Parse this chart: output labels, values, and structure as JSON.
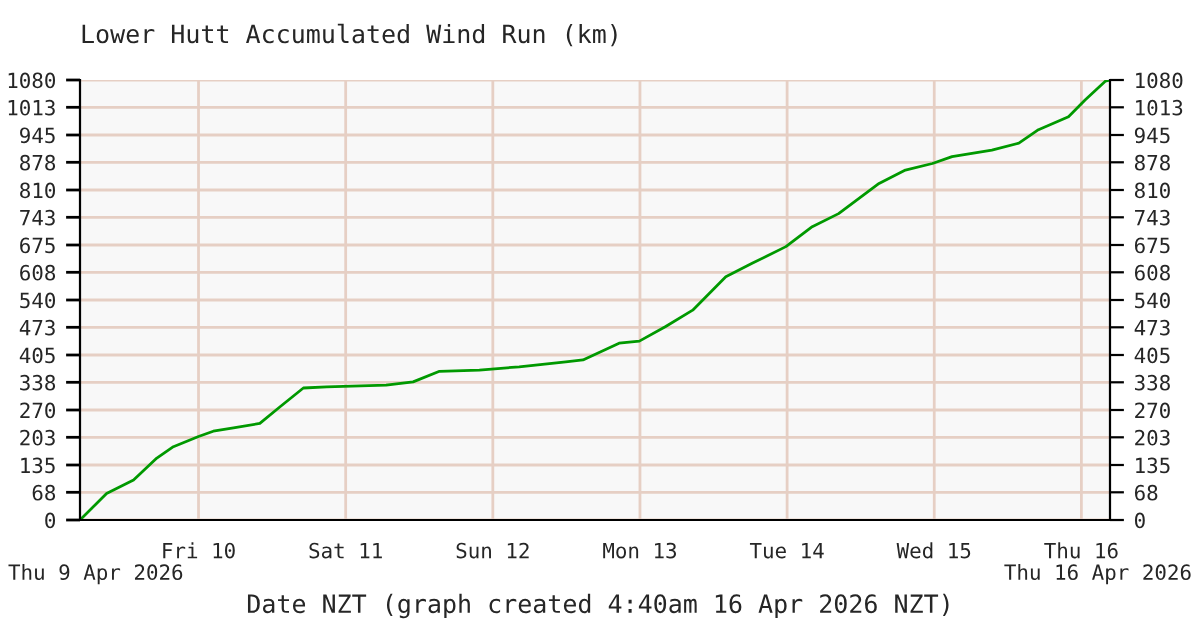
{
  "chart_data": {
    "type": "line",
    "title": "Lower Hutt Accumulated Wind Run (km)",
    "xlabel": "Date NZT (graph created 4:40am 16 Apr 2026 NZT)",
    "annotations": [
      "Thu 9 Apr 2026",
      "Thu 16 Apr 2026"
    ],
    "series": [
      {
        "color": "#009900",
        "x": [
          "2026-04-09T04:40",
          "2026-04-09T09:00",
          "2026-04-09T13:24",
          "2026-04-09T17:12",
          "2026-04-09T19:54",
          "2026-04-10T00:00",
          "2026-04-10T02:24",
          "2026-04-10T05:42",
          "2026-04-10T10:00",
          "2026-04-10T13:18",
          "2026-04-10T17:06",
          "2026-04-10T20:54",
          "2026-04-11T06:36",
          "2026-04-11T11:00",
          "2026-04-11T15:18",
          "2026-04-11T21:48",
          "2026-04-12T04:18",
          "2026-04-12T11:54",
          "2026-04-12T14:42",
          "2026-04-12T20:36",
          "2026-04-12T23:54",
          "2026-04-13T04:12",
          "2026-04-13T08:36",
          "2026-04-13T14:00",
          "2026-04-13T18:18",
          "2026-04-13T23:48",
          "2026-04-14T04:06",
          "2026-04-14T08:24",
          "2026-04-14T15:00",
          "2026-04-14T19:18",
          "2026-04-14T23:42",
          "2026-04-15T02:54",
          "2026-04-15T09:24",
          "2026-04-15T13:48",
          "2026-04-15T17:00",
          "2026-04-15T21:54",
          "2026-04-16T00:36",
          "2026-04-16T03:54",
          "2026-04-16T04:40"
        ],
        "values": [
          0,
          65,
          98,
          152,
          180,
          205,
          218,
          226,
          237,
          278,
          324,
          327,
          331,
          339,
          365,
          368,
          376,
          388,
          393,
          434,
          439,
          475,
          515,
          597,
          630,
          671,
          720,
          752,
          826,
          859,
          875,
          892,
          908,
          925,
          958,
          990,
          1031,
          1077,
          1080
        ]
      }
    ],
    "xlim": [
      "2026-04-09T04:40",
      "2026-04-16T04:40"
    ],
    "xticks": [
      {
        "value": "2026-04-10",
        "label": "Fri 10"
      },
      {
        "value": "2026-04-11",
        "label": "Sat 11"
      },
      {
        "value": "2026-04-12",
        "label": "Sun 12"
      },
      {
        "value": "2026-04-13",
        "label": "Mon 13"
      },
      {
        "value": "2026-04-14",
        "label": "Tue 14"
      },
      {
        "value": "2026-04-15",
        "label": "Wed 15"
      },
      {
        "value": "2026-04-16",
        "label": "Thu 16"
      }
    ],
    "ylim": [
      0,
      1080
    ],
    "yticks": [
      0,
      68,
      135,
      203,
      270,
      338,
      405,
      473,
      540,
      608,
      675,
      743,
      810,
      878,
      945,
      1013,
      1080
    ],
    "y2lim": [
      0,
      1080
    ],
    "y2ticks": [
      0,
      68,
      135,
      203,
      270,
      338,
      405,
      473,
      540,
      608,
      675,
      743,
      810,
      878,
      945,
      1013,
      1080
    ],
    "grid": true,
    "legend": false,
    "marker": "none",
    "line_style": "solid"
  }
}
